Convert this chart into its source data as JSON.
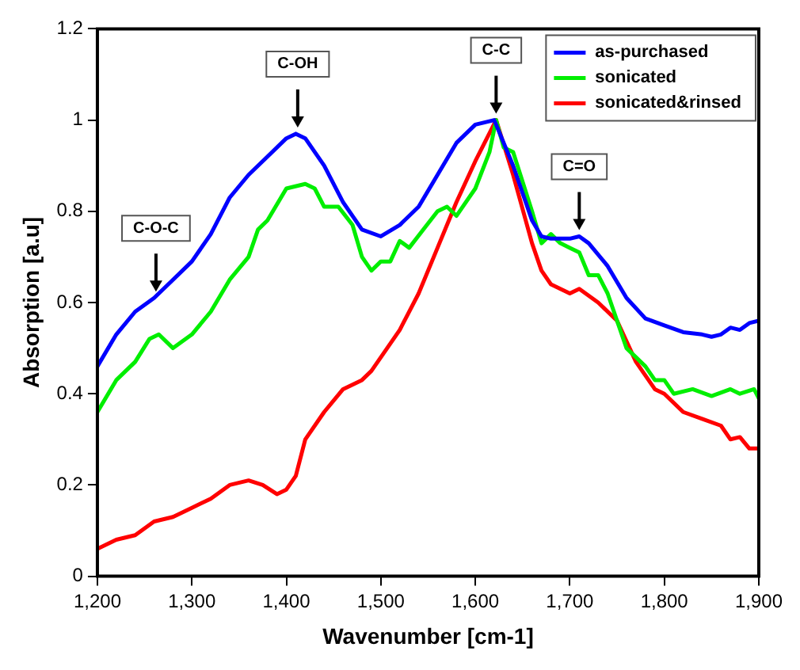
{
  "chart_data": {
    "type": "line",
    "xlabel": "Wavenumber [cm-1]",
    "ylabel": "Absorption [a.u]",
    "xlim": [
      1200,
      1900
    ],
    "ylim": [
      0,
      1.2
    ],
    "xticks": [
      {
        "value": 1200,
        "label": "1,200"
      },
      {
        "value": 1300,
        "label": "1,300"
      },
      {
        "value": 1400,
        "label": "1,400"
      },
      {
        "value": 1500,
        "label": "1,500"
      },
      {
        "value": 1600,
        "label": "1,600"
      },
      {
        "value": 1700,
        "label": "1,700"
      },
      {
        "value": 1800,
        "label": "1,800"
      },
      {
        "value": 1900,
        "label": "1,900"
      }
    ],
    "yticks": [
      0,
      0.2,
      0.4,
      0.6,
      0.8,
      1,
      1.2
    ],
    "grid": false,
    "legend": "top right",
    "marker": "none",
    "line_style": "solid",
    "annotations": [
      {
        "text": "C-O-C",
        "x": 1262,
        "y": 0.61
      },
      {
        "text": "C-OH",
        "x": 1412,
        "y": 0.97
      },
      {
        "text": "C-C",
        "x": 1622,
        "y": 1.0
      },
      {
        "text": "C=O",
        "x": 1710,
        "y": 0.745
      }
    ],
    "series": [
      {
        "name": "as-purchased",
        "color": "#0000ff",
        "x": [
          1200,
          1220,
          1240,
          1260,
          1280,
          1300,
          1320,
          1340,
          1360,
          1380,
          1400,
          1410,
          1420,
          1440,
          1460,
          1480,
          1500,
          1520,
          1540,
          1560,
          1580,
          1600,
          1620,
          1640,
          1660,
          1670,
          1680,
          1700,
          1710,
          1720,
          1740,
          1760,
          1780,
          1800,
          1820,
          1840,
          1850,
          1860,
          1870,
          1880,
          1890,
          1900
        ],
        "values": [
          0.46,
          0.53,
          0.58,
          0.61,
          0.65,
          0.69,
          0.75,
          0.83,
          0.88,
          0.92,
          0.96,
          0.97,
          0.96,
          0.9,
          0.82,
          0.76,
          0.745,
          0.77,
          0.81,
          0.88,
          0.95,
          0.99,
          1.0,
          0.9,
          0.78,
          0.745,
          0.74,
          0.74,
          0.745,
          0.73,
          0.68,
          0.61,
          0.565,
          0.55,
          0.535,
          0.53,
          0.525,
          0.53,
          0.545,
          0.54,
          0.555,
          0.56
        ]
      },
      {
        "name": "sonicated",
        "color": "#00ee00",
        "x": [
          1200,
          1220,
          1240,
          1255,
          1265,
          1280,
          1300,
          1320,
          1340,
          1360,
          1370,
          1380,
          1400,
          1420,
          1430,
          1440,
          1455,
          1470,
          1480,
          1490,
          1500,
          1510,
          1520,
          1530,
          1545,
          1560,
          1570,
          1580,
          1600,
          1615,
          1622,
          1630,
          1640,
          1660,
          1670,
          1680,
          1690,
          1700,
          1710,
          1720,
          1730,
          1740,
          1760,
          1780,
          1790,
          1800,
          1810,
          1830,
          1850,
          1870,
          1880,
          1895,
          1900
        ],
        "values": [
          0.36,
          0.43,
          0.47,
          0.52,
          0.53,
          0.5,
          0.53,
          0.58,
          0.65,
          0.7,
          0.76,
          0.78,
          0.85,
          0.86,
          0.85,
          0.81,
          0.81,
          0.77,
          0.7,
          0.67,
          0.69,
          0.69,
          0.735,
          0.72,
          0.76,
          0.8,
          0.81,
          0.79,
          0.85,
          0.93,
          1.0,
          0.94,
          0.93,
          0.8,
          0.73,
          0.75,
          0.73,
          0.72,
          0.71,
          0.66,
          0.66,
          0.62,
          0.5,
          0.46,
          0.43,
          0.43,
          0.4,
          0.41,
          0.395,
          0.41,
          0.4,
          0.41,
          0.39
        ]
      },
      {
        "name": "sonicated&rinsed",
        "color": "#ff0000",
        "x": [
          1200,
          1220,
          1240,
          1260,
          1280,
          1300,
          1320,
          1340,
          1360,
          1375,
          1390,
          1400,
          1410,
          1420,
          1440,
          1460,
          1480,
          1490,
          1500,
          1520,
          1540,
          1560,
          1580,
          1600,
          1622,
          1640,
          1660,
          1670,
          1680,
          1700,
          1710,
          1730,
          1750,
          1770,
          1790,
          1800,
          1820,
          1840,
          1860,
          1870,
          1880,
          1890,
          1900
        ],
        "values": [
          0.06,
          0.08,
          0.09,
          0.12,
          0.13,
          0.15,
          0.17,
          0.2,
          0.21,
          0.2,
          0.18,
          0.19,
          0.22,
          0.3,
          0.36,
          0.41,
          0.43,
          0.45,
          0.48,
          0.54,
          0.62,
          0.72,
          0.82,
          0.91,
          1.0,
          0.88,
          0.73,
          0.67,
          0.64,
          0.62,
          0.63,
          0.6,
          0.56,
          0.47,
          0.41,
          0.4,
          0.36,
          0.345,
          0.33,
          0.3,
          0.305,
          0.28,
          0.28
        ]
      }
    ]
  }
}
